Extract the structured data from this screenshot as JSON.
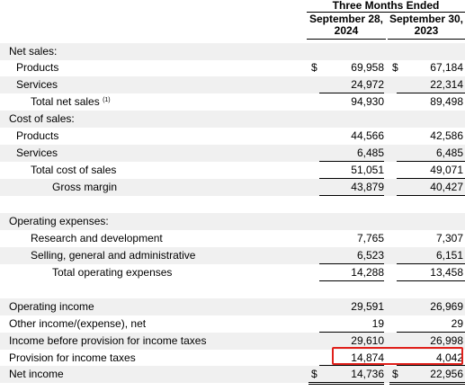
{
  "header": {
    "period": "Three Months Ended",
    "col1": "September 28, 2024",
    "col2": "September 30, 2023"
  },
  "rows": [
    {
      "label": "Net sales:"
    },
    {
      "label": "Products",
      "v1": "69,958",
      "v2": "67,184",
      "dollar": "$"
    },
    {
      "label": "Services",
      "v1": "24,972",
      "v2": "22,314"
    },
    {
      "label": "Total net sales",
      "note": "(1)",
      "v1": "94,930",
      "v2": "89,498"
    },
    {
      "label": "Cost of sales:"
    },
    {
      "label": "Products",
      "v1": "44,566",
      "v2": "42,586"
    },
    {
      "label": "Services",
      "v1": "6,485",
      "v2": "6,485"
    },
    {
      "label": "Total cost of sales",
      "v1": "51,051",
      "v2": "49,071"
    },
    {
      "label": "Gross margin",
      "v1": "43,879",
      "v2": "40,427"
    },
    {
      "label": ""
    },
    {
      "label": "Operating expenses:"
    },
    {
      "label": "Research and development",
      "v1": "7,765",
      "v2": "7,307"
    },
    {
      "label": "Selling, general and administrative",
      "v1": "6,523",
      "v2": "6,151"
    },
    {
      "label": "Total operating expenses",
      "v1": "14,288",
      "v2": "13,458"
    },
    {
      "label": ""
    },
    {
      "label": "Operating income",
      "v1": "29,591",
      "v2": "26,969"
    },
    {
      "label": "Other income/(expense), net",
      "v1": "19",
      "v2": "29"
    },
    {
      "label": "Income before provision for income taxes",
      "v1": "29,610",
      "v2": "26,998"
    },
    {
      "label": "Provision for income taxes",
      "v1": "14,874",
      "v2": "4,042"
    },
    {
      "label": "Net income",
      "v1": "14,736",
      "v2": "22,956",
      "dollar": "$"
    }
  ],
  "highlight_color": "#e0201b"
}
